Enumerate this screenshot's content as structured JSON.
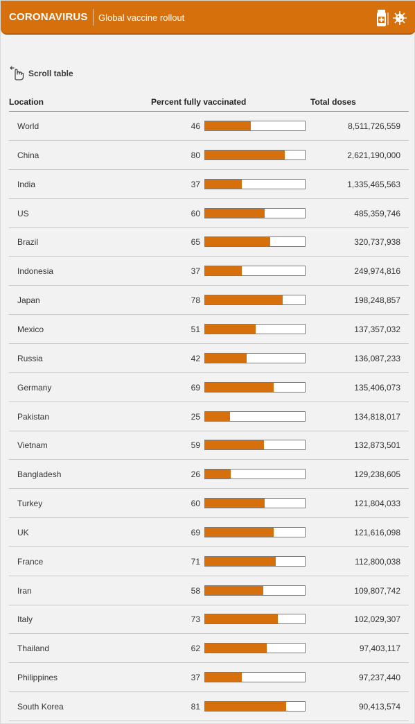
{
  "header": {
    "brand": "CORONAVIRUS",
    "title": "Global vaccine rollout",
    "icon": "vaccine-vial-virus-icon",
    "color": "#d5700d"
  },
  "scroll_hint": {
    "label": "Scroll table",
    "icon": "swipe-hand-icon"
  },
  "table": {
    "columns": [
      "Location",
      "Percent fully vaccinated",
      "Total doses"
    ]
  },
  "chart_data": {
    "type": "table",
    "bar_color": "#d5700d",
    "xlim": [
      0,
      100
    ],
    "rows": [
      {
        "location": "World",
        "percent": 46,
        "doses": "8,511,726,559"
      },
      {
        "location": "China",
        "percent": 80,
        "doses": "2,621,190,000"
      },
      {
        "location": "India",
        "percent": 37,
        "doses": "1,335,465,563"
      },
      {
        "location": "US",
        "percent": 60,
        "doses": "485,359,746"
      },
      {
        "location": "Brazil",
        "percent": 65,
        "doses": "320,737,938"
      },
      {
        "location": "Indonesia",
        "percent": 37,
        "doses": "249,974,816"
      },
      {
        "location": "Japan",
        "percent": 78,
        "doses": "198,248,857"
      },
      {
        "location": "Mexico",
        "percent": 51,
        "doses": "137,357,032"
      },
      {
        "location": "Russia",
        "percent": 42,
        "doses": "136,087,233"
      },
      {
        "location": "Germany",
        "percent": 69,
        "doses": "135,406,073"
      },
      {
        "location": "Pakistan",
        "percent": 25,
        "doses": "134,818,017"
      },
      {
        "location": "Vietnam",
        "percent": 59,
        "doses": "132,873,501"
      },
      {
        "location": "Bangladesh",
        "percent": 26,
        "doses": "129,238,605"
      },
      {
        "location": "Turkey",
        "percent": 60,
        "doses": "121,804,033"
      },
      {
        "location": "UK",
        "percent": 69,
        "doses": "121,616,098"
      },
      {
        "location": "France",
        "percent": 71,
        "doses": "112,800,038"
      },
      {
        "location": "Iran",
        "percent": 58,
        "doses": "109,807,742"
      },
      {
        "location": "Italy",
        "percent": 73,
        "doses": "102,029,307"
      },
      {
        "location": "Thailand",
        "percent": 62,
        "doses": "97,403,117"
      },
      {
        "location": "Philippines",
        "percent": 37,
        "doses": "97,237,440"
      },
      {
        "location": "South Korea",
        "percent": 81,
        "doses": "90,413,574"
      }
    ]
  }
}
